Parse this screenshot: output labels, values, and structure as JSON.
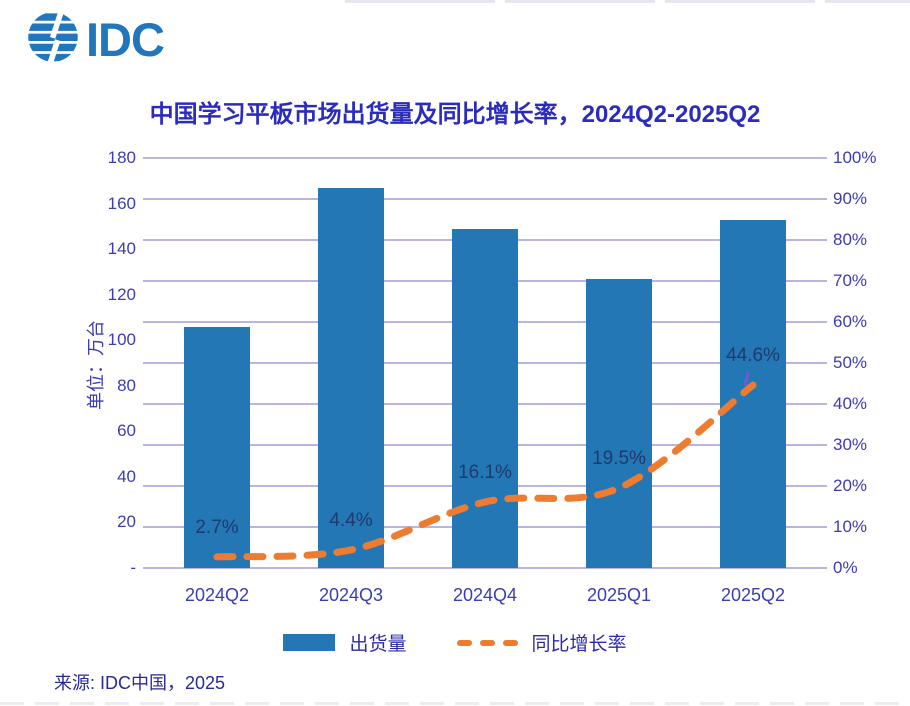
{
  "brand": {
    "logo_text": "IDC",
    "logo_color": "#2176BC"
  },
  "title": {
    "text": "中国学习平板市场出货量及同比增长率，2024Q2-2025Q2",
    "color": "#2B2BBE"
  },
  "chart_data": {
    "type": "combo-bar-line",
    "categories": [
      "2024Q2",
      "2024Q3",
      "2024Q4",
      "2025Q1",
      "2025Q2"
    ],
    "series": [
      {
        "name": "出货量",
        "type": "bar",
        "axis": "left",
        "values": [
          106,
          167,
          149,
          127,
          153
        ],
        "color": "#2377B4"
      },
      {
        "name": "同比增长率",
        "type": "dashed-line",
        "axis": "right",
        "values": [
          2.7,
          4.4,
          16.1,
          19.5,
          44.6
        ],
        "labels": [
          "2.7%",
          "4.4%",
          "16.1%",
          "19.5%",
          "44.6%"
        ],
        "color": "#ED7C31"
      }
    ],
    "left_axis": {
      "title": "单位：万台",
      "ticks": [
        "180",
        "160",
        "140",
        "120",
        "100",
        "80",
        "60",
        "40",
        "20",
        "-"
      ],
      "range": [
        0,
        180
      ]
    },
    "right_axis": {
      "ticks": [
        "100%",
        "90%",
        "80%",
        "70%",
        "60%",
        "50%",
        "40%",
        "30%",
        "20%",
        "10%",
        "0%"
      ],
      "range": [
        0,
        100
      ]
    },
    "grid": {
      "on": true,
      "color": "#B9B5E2"
    },
    "legend_position": "bottom",
    "text_colors": {
      "axis": "#3C3CB4",
      "data_label": "#1F3A6E"
    }
  },
  "legend": {
    "shipments_label": "出货量",
    "growth_label": "同比增长率",
    "text_color": "#2B2BA8"
  },
  "footer": {
    "source": "来源: IDC中国，2025",
    "color": "#2A2A96"
  }
}
